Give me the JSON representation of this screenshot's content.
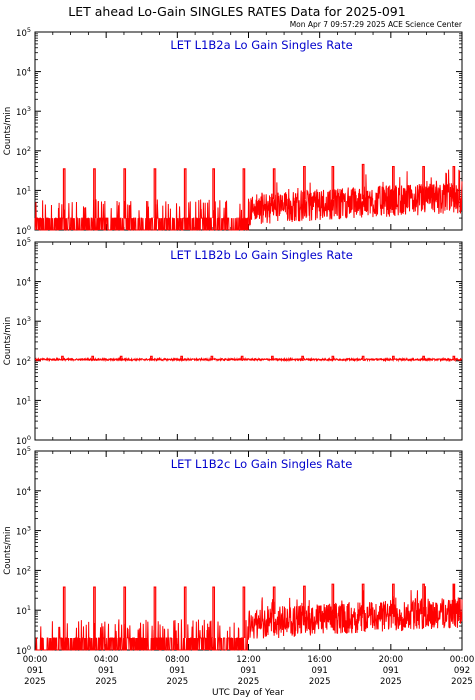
{
  "page_title": "LET ahead Lo-Gain SINGLES RATES Data for 2025-091",
  "timestamp": "Mon Apr  7 09:57:29 2025 ACE Science Center",
  "xlabel": "UTC Day of Year",
  "ylabel": "Counts/min",
  "colors": {
    "series": "#ff0000",
    "panel_title": "#0000cc",
    "axes": "#000000"
  },
  "x_ticks": [
    {
      "hour": 0,
      "l1": "00:00",
      "l2": "091",
      "l3": "2025"
    },
    {
      "hour": 4,
      "l1": "04:00",
      "l2": "091",
      "l3": "2025"
    },
    {
      "hour": 8,
      "l1": "08:00",
      "l2": "091",
      "l3": "2025"
    },
    {
      "hour": 12,
      "l1": "12:00",
      "l2": "091",
      "l3": "2025"
    },
    {
      "hour": 16,
      "l1": "16:00",
      "l2": "091",
      "l3": "2025"
    },
    {
      "hour": 20,
      "l1": "20:00",
      "l2": "091",
      "l3": "2025"
    },
    {
      "hour": 24,
      "l1": "00:00",
      "l2": "092",
      "l3": "2025"
    }
  ],
  "y_ticks": [
    {
      "exp": 0,
      "base": "10",
      "sup": "0"
    },
    {
      "exp": 1,
      "base": "10",
      "sup": "1"
    },
    {
      "exp": 2,
      "base": "10",
      "sup": "2"
    },
    {
      "exp": 3,
      "base": "10",
      "sup": "3"
    },
    {
      "exp": 4,
      "base": "10",
      "sup": "4"
    },
    {
      "exp": 5,
      "base": "10",
      "sup": "5"
    }
  ],
  "chart_data": [
    {
      "type": "line",
      "title": "LET L1B2a Lo Gain Singles Rate",
      "xlabel": "UTC Day of Year",
      "ylabel": "Counts/min",
      "xlim": [
        0,
        24
      ],
      "ylim": [
        1,
        100000
      ],
      "yscale": "log",
      "series": [
        {
          "values": {
            "baseline_early": 2,
            "baseline_late": 6,
            "transition_hour": 12,
            "spike_hours": [
              1.6,
              3.3,
              5.0,
              6.7,
              8.4,
              10.0,
              11.7,
              13.4,
              15.1,
              16.7,
              18.4,
              20.1,
              21.8,
              23.5
            ],
            "spike_values": [
              35,
              35,
              35,
              35,
              35,
              35,
              35,
              35,
              40,
              40,
              45,
              40,
              40,
              40
            ]
          }
        }
      ]
    },
    {
      "type": "line",
      "title": "LET L1B2b Lo Gain Singles Rate",
      "xlabel": "UTC Day of Year",
      "ylabel": "Counts/min",
      "xlim": [
        0,
        24
      ],
      "ylim": [
        1,
        100000
      ],
      "yscale": "log",
      "series": [
        {
          "values": {
            "baseline": 110,
            "spike_hours": [
              1.5,
              3.2,
              4.8,
              6.5,
              8.2,
              9.9,
              11.6,
              13.3,
              15.0,
              16.7,
              18.4,
              20.1,
              21.8,
              23.5
            ],
            "spike_values": [
              130,
              130,
              130,
              130,
              130,
              130,
              130,
              130,
              130,
              130,
              130,
              130,
              130,
              130
            ]
          }
        }
      ]
    },
    {
      "type": "line",
      "title": "LET L1B2c Lo Gain Singles Rate",
      "xlabel": "UTC Day of Year",
      "ylabel": "Counts/min",
      "xlim": [
        0,
        24
      ],
      "ylim": [
        1,
        100000
      ],
      "yscale": "log",
      "series": [
        {
          "values": {
            "baseline_early": 2,
            "baseline_late": 8,
            "transition_hour": 12,
            "spike_hours": [
              1.6,
              3.3,
              5.0,
              6.7,
              8.4,
              10.0,
              11.7,
              13.4,
              15.1,
              16.7,
              18.4,
              20.1,
              21.8,
              23.5
            ],
            "spike_values": [
              38,
              38,
              38,
              38,
              38,
              38,
              38,
              38,
              40,
              45,
              45,
              45,
              45,
              45
            ]
          }
        }
      ]
    }
  ]
}
